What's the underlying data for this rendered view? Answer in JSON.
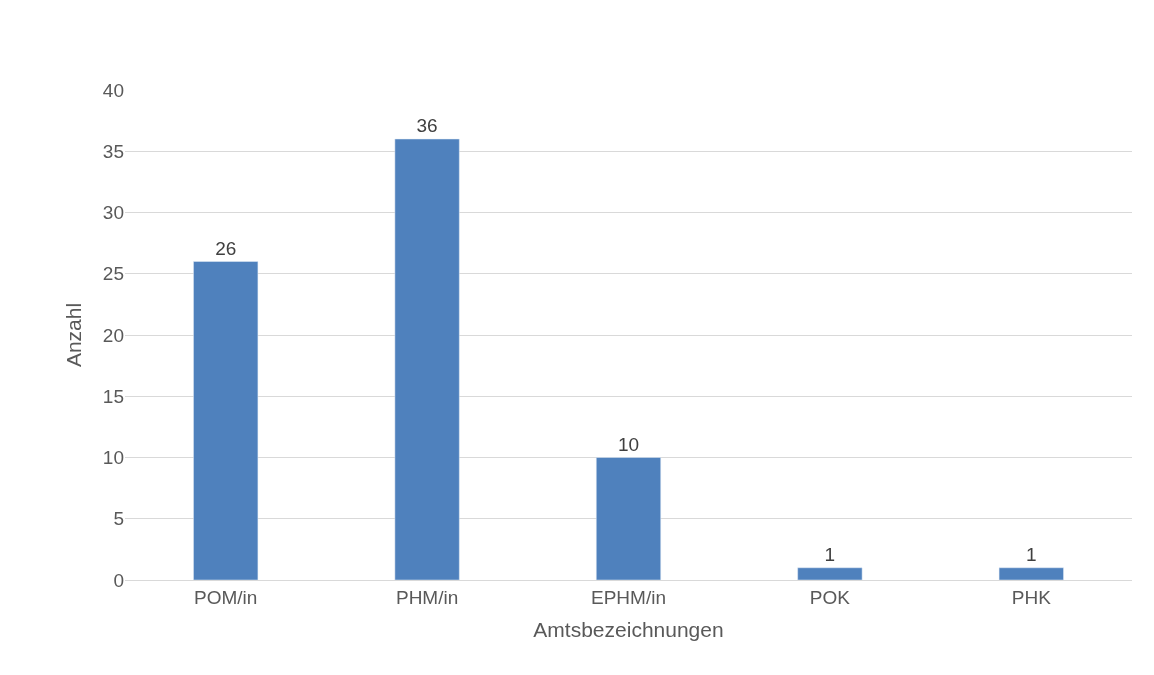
{
  "chart_data": {
    "type": "bar",
    "xlabel": "Amtsbezeichnungen",
    "ylabel": "Anzahl",
    "categories": [
      "POM/in",
      "PHM/in",
      "EPHM/in",
      "POK",
      "PHK"
    ],
    "values": [
      26,
      36,
      10,
      1,
      1
    ],
    "color": "#4f81bd",
    "ylim": [
      0,
      40
    ],
    "yticks": [
      0,
      5,
      10,
      15,
      20,
      25,
      30,
      35,
      40
    ],
    "grid": "y",
    "data_labels": true,
    "legend": false
  }
}
